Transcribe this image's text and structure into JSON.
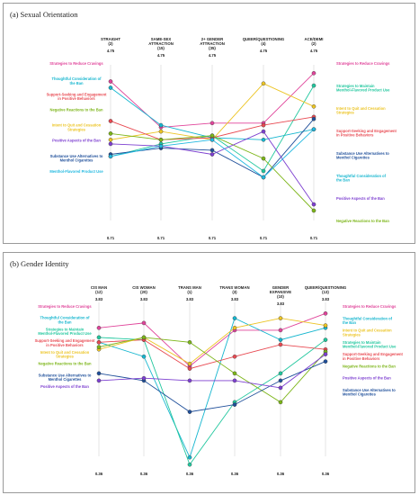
{
  "chart_data": [
    {
      "type": "line",
      "title": "(a) Sexual Orientation",
      "axes": [
        {
          "label": "STRAIGHT",
          "n": "(2)",
          "max": "4.75",
          "min": "0.71"
        },
        {
          "label": "SAME-SEX ATTRACTION",
          "n": "(15)",
          "max": "4.75",
          "min": "0.71"
        },
        {
          "label": "2+ GENDER ATTRACTION",
          "n": "(35)",
          "max": "4.75",
          "min": "0.71"
        },
        {
          "label": "QUEER/QUESTIONING",
          "n": "(4)",
          "max": "4.75",
          "min": "0.71"
        },
        {
          "label": "ACE/DEMI",
          "n": "(2)",
          "max": "4.75",
          "min": "0.71"
        }
      ],
      "ylim": [
        0.71,
        4.75
      ],
      "series": [
        {
          "name": "Strategies to Reduce Cravings",
          "color": "#e0449a",
          "values": [
            4.35,
            3.25,
            3.35,
            3.35,
            4.55
          ]
        },
        {
          "name": "Thoughtful Consideration of the Ban",
          "color": "#16b6cf",
          "values": [
            4.2,
            3.3,
            3.0,
            2.95,
            3.2
          ]
        },
        {
          "name": "Strategies to Maintain Menthol-Flavored Product Use",
          "color": "#21c79e",
          "values": [
            2.55,
            2.85,
            3.05,
            2.2,
            4.25
          ]
        },
        {
          "name": "Intent to Quit and Cessation Strategies",
          "color": "#ecc424",
          "values": [
            2.95,
            3.15,
            2.95,
            4.3,
            3.75
          ]
        },
        {
          "name": "Support-Seeking and Engagement in Positive Behaviors",
          "color": "#e84a52",
          "values": [
            3.4,
            2.95,
            3.0,
            3.3,
            3.5
          ]
        },
        {
          "name": "Substance Use Alternatives to Menthol Cigarettes",
          "color": "#1f4f9a",
          "values": [
            2.6,
            2.75,
            2.7,
            2.05,
            3.45
          ]
        },
        {
          "name": "Negative Reactions to the Ban",
          "color": "#7cb518",
          "values": [
            3.1,
            2.95,
            3.05,
            2.5,
            1.25
          ]
        },
        {
          "name": "Positive Aspects of the Ban",
          "color": "#7d3fd0",
          "values": [
            2.85,
            2.8,
            2.6,
            3.15,
            1.4
          ]
        },
        {
          "name": "Menthol-Flavored Product Use",
          "color": "#22b9e0",
          "values": [
            2.55,
            2.8,
            2.95,
            2.05,
            3.2
          ]
        }
      ],
      "left_labels": [
        "Strategies to Reduce Cravings",
        "Thoughtful Consideration of the Ban",
        "Support-Seeking and Engagement in Positive Behaviors",
        "Negative Reactions to the Ban",
        "Intent to Quit and Cessation Strategies",
        "Positive Aspects of the Ban",
        "Substance Use Alternatives to Menthol Cigarettes",
        "Menthol-Flavored Product Use"
      ],
      "right_labels": [
        "Strategies to Reduce Cravings",
        "Strategies to Maintain Menthol-Flavored Product Use",
        "Intent to Quit and Cessation Strategies",
        "Support-Seeking and Engagement in Positive Behaviors",
        "Substance Use Alternatives to Menthol Cigarettes",
        "Thoughtful Consideration of the Ban",
        "Positive Aspects of the Ban",
        "Negative Reactions to the Ban"
      ]
    },
    {
      "type": "line",
      "title": "(b) Gender Identity",
      "axes": [
        {
          "label": "CIS MAN",
          "n": "(12)",
          "max": "3.83",
          "min": "0.36"
        },
        {
          "label": "CIS WOMAN",
          "n": "(20)",
          "max": "3.83",
          "min": "0.36"
        },
        {
          "label": "TRANS MAN",
          "n": "(1)",
          "max": "3.83",
          "min": "0.36"
        },
        {
          "label": "TRANS WOMAN",
          "n": "(3)",
          "max": "3.83",
          "min": "0.36"
        },
        {
          "label": "GENDER EXPANSIVE",
          "n": "(10)",
          "max": "3.83",
          "min": "0.36"
        },
        {
          "label": "QUEER/QUESTIONING",
          "n": "(13)",
          "max": "3.83",
          "min": "0.36"
        }
      ],
      "ylim": [
        0.36,
        3.83
      ],
      "series": [
        {
          "name": "Strategies to Reduce Cravings",
          "color": "#e0449a",
          "values": [
            3.3,
            3.4,
            2.5,
            3.25,
            3.25,
            3.6
          ]
        },
        {
          "name": "Thoughtful Consideration of the Ban",
          "color": "#16b6cf",
          "values": [
            3.0,
            2.7,
            0.6,
            3.5,
            3.05,
            3.3
          ]
        },
        {
          "name": "Strategies to Maintain Menthol-Flavored Product Use",
          "color": "#21c79e",
          "values": [
            3.1,
            3.05,
            0.45,
            1.75,
            2.35,
            3.05
          ]
        },
        {
          "name": "Support-Seeking and Engagement in Positive Behaviors",
          "color": "#e84a52",
          "values": [
            3.0,
            3.05,
            2.45,
            2.7,
            2.95,
            2.85
          ]
        },
        {
          "name": "Intent to Quit and Cessation Strategies",
          "color": "#ecc424",
          "values": [
            2.85,
            3.1,
            2.55,
            3.3,
            3.5,
            3.35
          ]
        },
        {
          "name": "Negative Reactions to the Ban",
          "color": "#7cb518",
          "values": [
            2.9,
            3.1,
            3.0,
            2.35,
            1.75,
            2.8
          ]
        },
        {
          "name": "Substance Use Alternatives to Menthol Cigarettes",
          "color": "#1f4f9a",
          "values": [
            2.35,
            2.2,
            1.55,
            1.7,
            2.2,
            2.6
          ]
        },
        {
          "name": "Positive Aspects of the Ban",
          "color": "#7d3fd0",
          "values": [
            2.2,
            2.25,
            2.2,
            2.2,
            2.05,
            2.75
          ]
        }
      ],
      "left_labels": [
        "Strategies to Reduce Cravings",
        "Thoughtful Consideration of the Ban",
        "Strategies to Maintain Menthol-Flavored Product Use",
        "Support-Seeking and Engagement in Positive Behaviors",
        "Intent to Quit and Cessation Strategies",
        "Negative Reactions to the Ban",
        "Substance Use Alternatives to Menthol Cigarettes",
        "Positive Aspects of the Ban"
      ],
      "right_labels": [
        "Strategies to Reduce Cravings",
        "Thoughtful Consideration of the Ban",
        "Intent to Quit and Cessation Strategies",
        "Strategies to Maintain Menthol-Flavored Product Use",
        "Support-Seeking and Engagement in Positive Behaviors",
        "Negative Reactions to the Ban",
        "Positive Aspects of the Ban",
        "Substance Use Alternatives to Menthol Cigarettes"
      ]
    }
  ]
}
